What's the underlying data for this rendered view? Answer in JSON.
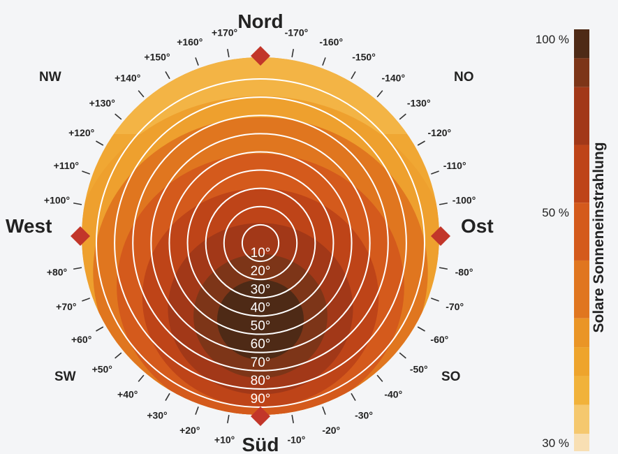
{
  "chart_data": {
    "type": "polar-heatmap",
    "directions": {
      "north": "Nord",
      "south": "Süd",
      "west": "West",
      "east": "Ost",
      "northwest": "NW",
      "northeast": "NO",
      "southwest": "SW",
      "southeast": "SO"
    },
    "azimuth_ticks": [
      {
        "deg": 10,
        "label": "+10°"
      },
      {
        "deg": 20,
        "label": "+20°"
      },
      {
        "deg": 30,
        "label": "+30°"
      },
      {
        "deg": 40,
        "label": "+40°"
      },
      {
        "deg": 50,
        "label": "+50°"
      },
      {
        "deg": 60,
        "label": "+60°"
      },
      {
        "deg": 70,
        "label": "+70°"
      },
      {
        "deg": 80,
        "label": "+80°"
      },
      {
        "deg": 100,
        "label": "+100°"
      },
      {
        "deg": 110,
        "label": "+110°"
      },
      {
        "deg": 120,
        "label": "+120°"
      },
      {
        "deg": 130,
        "label": "+130°"
      },
      {
        "deg": 140,
        "label": "+140°"
      },
      {
        "deg": 150,
        "label": "+150°"
      },
      {
        "deg": 160,
        "label": "+160°"
      },
      {
        "deg": 170,
        "label": "+170°"
      },
      {
        "deg": -10,
        "label": "-10°"
      },
      {
        "deg": -20,
        "label": "-20°"
      },
      {
        "deg": -30,
        "label": "-30°"
      },
      {
        "deg": -40,
        "label": "-40°"
      },
      {
        "deg": -50,
        "label": "-50°"
      },
      {
        "deg": -60,
        "label": "-60°"
      },
      {
        "deg": -70,
        "label": "-70°"
      },
      {
        "deg": -80,
        "label": "-80°"
      },
      {
        "deg": -100,
        "label": "-100°"
      },
      {
        "deg": -110,
        "label": "-110°"
      },
      {
        "deg": -120,
        "label": "-120°"
      },
      {
        "deg": -130,
        "label": "-130°"
      },
      {
        "deg": -140,
        "label": "-140°"
      },
      {
        "deg": -150,
        "label": "-150°"
      },
      {
        "deg": -160,
        "label": "-160°"
      },
      {
        "deg": -170,
        "label": "-170°"
      }
    ],
    "tilt_rings": [
      {
        "deg": 10,
        "label": "10°"
      },
      {
        "deg": 20,
        "label": "20°"
      },
      {
        "deg": 30,
        "label": "30°"
      },
      {
        "deg": 40,
        "label": "40°"
      },
      {
        "deg": 50,
        "label": "50°"
      },
      {
        "deg": 60,
        "label": "60°"
      },
      {
        "deg": 70,
        "label": "70°"
      },
      {
        "deg": 80,
        "label": "80°"
      },
      {
        "deg": 90,
        "label": "90°"
      }
    ],
    "colorbar": {
      "title": "Solare Sonneneinstrahlung",
      "tick_labels": [
        {
          "value": 100,
          "label": "100 %"
        },
        {
          "value": 50,
          "label": "50 %"
        },
        {
          "value": 30,
          "label": "30 %"
        }
      ],
      "bands": [
        {
          "from": 95,
          "to": 100,
          "color": "#4e2a16"
        },
        {
          "from": 90,
          "to": 95,
          "color": "#7d3518"
        },
        {
          "from": 80,
          "to": 90,
          "color": "#a23818"
        },
        {
          "from": 70,
          "to": 80,
          "color": "#be4418"
        },
        {
          "from": 60,
          "to": 70,
          "color": "#d45a1c"
        },
        {
          "from": 50,
          "to": 60,
          "color": "#e0761f"
        },
        {
          "from": 45,
          "to": 50,
          "color": "#ea9526"
        },
        {
          "from": 40,
          "to": 45,
          "color": "#eea42c"
        },
        {
          "from": 35,
          "to": 40,
          "color": "#f1b23a"
        },
        {
          "from": 30,
          "to": 35,
          "color": "#f5c86e"
        },
        {
          "from": 27,
          "to": 30,
          "color": "#f8dfb3"
        }
      ]
    },
    "irradiance_zones": [
      {
        "level": 97,
        "color": "#4e2a16",
        "tilt_center": 42,
        "azimuth_center": 0,
        "tilt_radius": 22
      },
      {
        "level": 92,
        "color": "#7d3518",
        "tilt_center": 40,
        "azimuth_center": 0,
        "tilt_radius": 34
      },
      {
        "level": 85,
        "color": "#a23818",
        "tilt_center": 36,
        "azimuth_center": 0,
        "tilt_radius": 47
      },
      {
        "level": 75,
        "color": "#be4418",
        "tilt_center": 30,
        "azimuth_center": 0,
        "tilt_radius": 60
      },
      {
        "level": 65,
        "color": "#d45a1c",
        "tilt_center": 24,
        "azimuth_center": 0,
        "tilt_radius": 73
      },
      {
        "level": 55,
        "color": "#e0761f",
        "tilt_center": 16,
        "azimuth_center": 0,
        "tilt_radius": 85
      }
    ],
    "colors": {
      "background": "#f4f5f7",
      "disc_base": "#f0a733",
      "upper_band": "#eea02e",
      "marker": "#c2362a",
      "ring": "#ffffff",
      "text": "#222222"
    }
  }
}
